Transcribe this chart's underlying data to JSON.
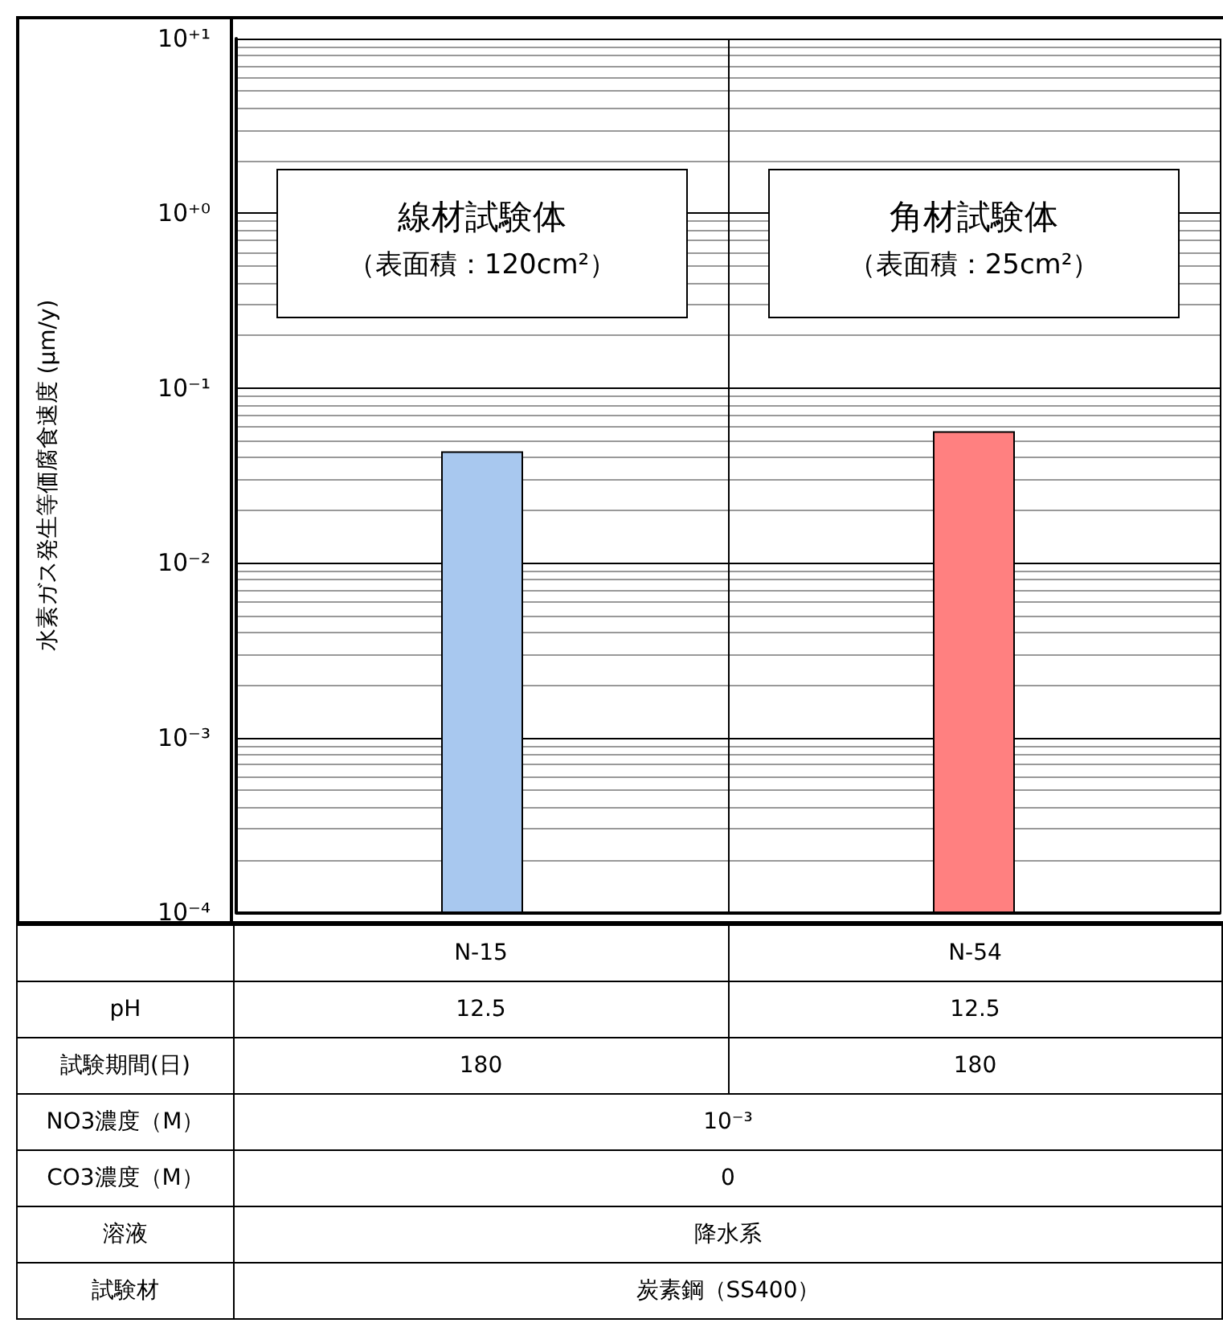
{
  "chart_data": {
    "type": "bar",
    "ylabel": "水素ガス発生等価腐食速度 (μm/y)",
    "categories": [
      "N-15",
      "N-54"
    ],
    "values": [
      0.043,
      0.056
    ],
    "colors": [
      "#a8c8ef",
      "#ff8080"
    ],
    "log": true,
    "ylim": [
      0.0001,
      10
    ],
    "yticks": [
      {
        "value": 10,
        "label": "10⁺¹"
      },
      {
        "value": 1,
        "label": "10⁺⁰"
      },
      {
        "value": 0.1,
        "label": "10⁻¹"
      },
      {
        "value": 0.01,
        "label": "10⁻²"
      },
      {
        "value": 0.001,
        "label": "10⁻³"
      },
      {
        "value": 0.0001,
        "label": "10⁻⁴"
      }
    ],
    "grid": true,
    "annotations": [
      "線材試験体（表面積：120cm²）",
      "角材試験体（表面積：25cm²）",
      "pH",
      "12.5",
      "12.5",
      "試験期間(日)",
      "180",
      "180",
      "NO3濃度（M）",
      "10⁻³",
      "CO3濃度（M）",
      "0",
      "溶液",
      "降水系",
      "試験材",
      "炭素鋼（SS400）"
    ]
  }
}
